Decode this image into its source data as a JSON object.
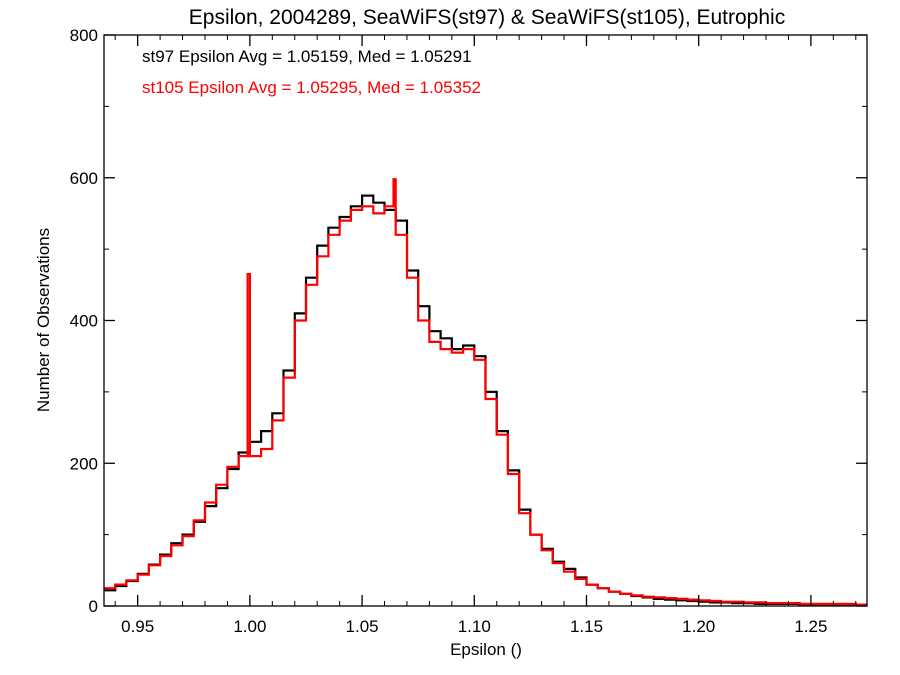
{
  "chart_data": {
    "type": "line",
    "step": true,
    "title": "Epsilon, 2004289, SeaWiFS(st97) & SeaWiFS(st105), Eutrophic",
    "xlabel": "Epsilon ()",
    "ylabel": "Number of Observations",
    "xlim": [
      0.935,
      1.275
    ],
    "ylim": [
      0,
      800
    ],
    "xticks": [
      0.95,
      1.0,
      1.05,
      1.1,
      1.15,
      1.2,
      1.25
    ],
    "xtick_labels": [
      "0.95",
      "1.00",
      "1.05",
      "1.10",
      "1.15",
      "1.20",
      "1.25"
    ],
    "yticks": [
      0,
      200,
      400,
      600,
      800
    ],
    "ytick_labels": [
      "0",
      "200",
      "400",
      "600",
      "800"
    ],
    "grid": false,
    "legend_placement": "top-left",
    "annotations": [
      {
        "text": "st97 Epsilon Avg = 1.05159, Med = 1.05291",
        "color": "#000000"
      },
      {
        "text": "st105 Epsilon Avg = 1.05295, Med = 1.05352",
        "color": "#ff0000"
      }
    ],
    "series": [
      {
        "color": "#000000",
        "x": [
          0.935,
          0.94,
          0.945,
          0.95,
          0.955,
          0.96,
          0.965,
          0.97,
          0.975,
          0.98,
          0.985,
          0.99,
          0.995,
          1.0,
          1.005,
          1.01,
          1.015,
          1.02,
          1.025,
          1.03,
          1.035,
          1.04,
          1.045,
          1.05,
          1.055,
          1.06,
          1.065,
          1.07,
          1.075,
          1.08,
          1.085,
          1.09,
          1.095,
          1.1,
          1.105,
          1.11,
          1.115,
          1.12,
          1.125,
          1.13,
          1.135,
          1.14,
          1.145,
          1.15,
          1.155,
          1.16,
          1.165,
          1.17,
          1.175,
          1.18,
          1.185,
          1.19,
          1.195,
          1.2,
          1.205,
          1.21,
          1.215,
          1.22,
          1.225,
          1.23,
          1.235,
          1.24,
          1.245,
          1.25,
          1.255,
          1.26,
          1.265,
          1.27,
          1.275
        ],
        "values": [
          22,
          28,
          35,
          45,
          58,
          72,
          88,
          100,
          118,
          140,
          165,
          192,
          215,
          230,
          245,
          270,
          330,
          410,
          460,
          505,
          530,
          545,
          560,
          575,
          565,
          555,
          540,
          470,
          420,
          385,
          375,
          360,
          365,
          350,
          300,
          245,
          190,
          135,
          100,
          80,
          62,
          52,
          40,
          30,
          25,
          20,
          17,
          14,
          12,
          10,
          9,
          8,
          7,
          6,
          5,
          5,
          4,
          4,
          3,
          3,
          3,
          3,
          2,
          2,
          2,
          2,
          2,
          2,
          2
        ]
      },
      {
        "color": "#ff0000",
        "x": [
          0.935,
          0.94,
          0.945,
          0.95,
          0.955,
          0.96,
          0.965,
          0.97,
          0.975,
          0.98,
          0.985,
          0.99,
          0.995,
          0.999,
          1.0,
          1.005,
          1.01,
          1.015,
          1.02,
          1.025,
          1.03,
          1.035,
          1.04,
          1.045,
          1.05,
          1.055,
          1.06,
          1.064,
          1.065,
          1.07,
          1.075,
          1.08,
          1.085,
          1.09,
          1.095,
          1.1,
          1.105,
          1.11,
          1.115,
          1.12,
          1.125,
          1.13,
          1.135,
          1.14,
          1.145,
          1.15,
          1.155,
          1.16,
          1.165,
          1.17,
          1.175,
          1.18,
          1.185,
          1.19,
          1.195,
          1.2,
          1.205,
          1.21,
          1.215,
          1.22,
          1.225,
          1.23,
          1.235,
          1.24,
          1.245,
          1.25,
          1.255,
          1.26,
          1.265,
          1.27,
          1.275
        ],
        "values": [
          25,
          30,
          36,
          44,
          57,
          70,
          85,
          98,
          120,
          145,
          170,
          195,
          210,
          465,
          210,
          220,
          260,
          320,
          400,
          450,
          490,
          520,
          540,
          555,
          560,
          550,
          560,
          598,
          520,
          460,
          400,
          370,
          360,
          355,
          360,
          345,
          290,
          240,
          185,
          130,
          100,
          78,
          60,
          48,
          38,
          30,
          25,
          20,
          17,
          15,
          13,
          12,
          11,
          10,
          9,
          8,
          7,
          6,
          6,
          5,
          5,
          4,
          4,
          4,
          3,
          3,
          3,
          3,
          3,
          2,
          2
        ]
      }
    ]
  }
}
